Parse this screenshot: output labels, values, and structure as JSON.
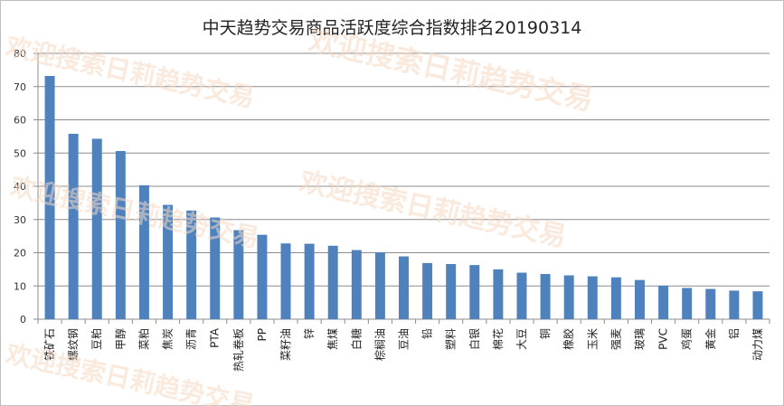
{
  "chart_data": {
    "type": "bar",
    "title": "中天趋势交易商品活跃度综合指数排名20190314",
    "xlabel": "",
    "ylabel": "",
    "ylim": [
      0,
      80
    ],
    "yticks": [
      0,
      10,
      20,
      30,
      40,
      50,
      60,
      70,
      80
    ],
    "grid": true,
    "legend": "none",
    "categories": [
      "铁矿石",
      "螺纹钢",
      "豆粕",
      "甲醇",
      "菜粕",
      "焦炭",
      "沥青",
      "PTA",
      "热轧卷板",
      "PP",
      "菜籽油",
      "锌",
      "焦煤",
      "白糖",
      "棕榈油",
      "豆油",
      "铅",
      "塑料",
      "白银",
      "棉花",
      "大豆",
      "铜",
      "橡胶",
      "玉米",
      "强麦",
      "玻璃",
      "PVC",
      "鸡蛋",
      "黄金",
      "铝",
      "动力煤"
    ],
    "values": [
      73.2,
      55.8,
      54.3,
      50.6,
      40.3,
      34.4,
      32.7,
      30.6,
      26.8,
      25.4,
      22.8,
      22.7,
      22.1,
      20.8,
      20.1,
      18.9,
      16.9,
      16.6,
      16.3,
      15.0,
      14.0,
      13.6,
      13.2,
      12.9,
      12.6,
      11.8,
      10.1,
      9.4,
      9.1,
      8.6,
      8.4
    ],
    "bar_color": "#4f81bd"
  },
  "watermark": {
    "text": "欢迎搜索日莉趋势交易",
    "color": "#f6d9c3"
  }
}
